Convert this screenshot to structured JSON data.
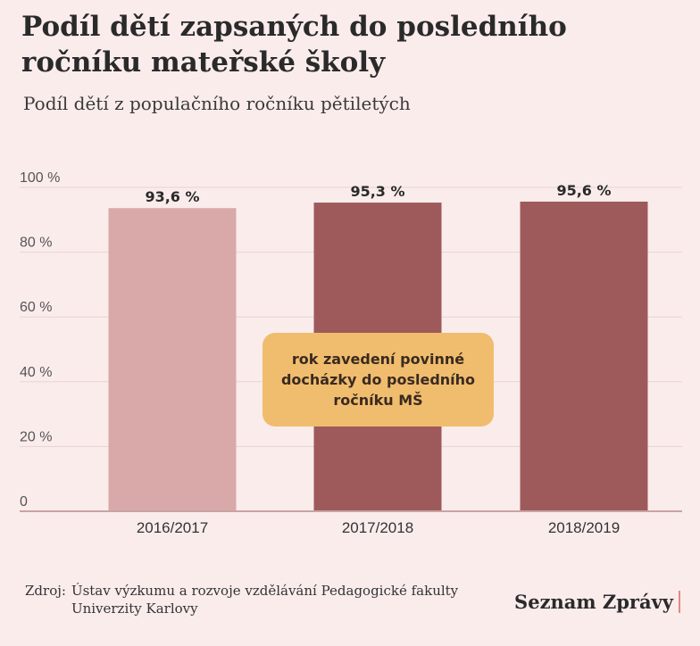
{
  "header": {
    "title": "Podíl dětí zapsaných do posledního ročníku mateřské školy",
    "subtitle": "Podíl dětí z populačního ročníku pětiletých"
  },
  "chart_data": {
    "type": "bar",
    "categories": [
      "2016/2017",
      "2017/2018",
      "2018/2019"
    ],
    "values": [
      93.6,
      95.3,
      95.6
    ],
    "value_labels": [
      "93,6 %",
      "95,3 %",
      "95,6 %"
    ],
    "bar_colors": [
      "#d9a9aa",
      "#9e5a5b",
      "#9e5a5b"
    ],
    "ylim": [
      0,
      100
    ],
    "yticks": [
      0,
      20,
      40,
      60,
      80,
      100
    ],
    "ytick_labels": [
      "0",
      "20 %",
      "40 %",
      "60 %",
      "80 %",
      "100 %"
    ],
    "grid": true,
    "annotation": "rok zavedení povinné docházky do posledního ročníku MŠ"
  },
  "footer": {
    "source_prefix": "Zdroj:",
    "source_text": "Ústav výzkumu a rozvoje vzdělávání Pedagogické fakulty Univerzity Karlovy",
    "brand": "Seznam Zprávy"
  }
}
